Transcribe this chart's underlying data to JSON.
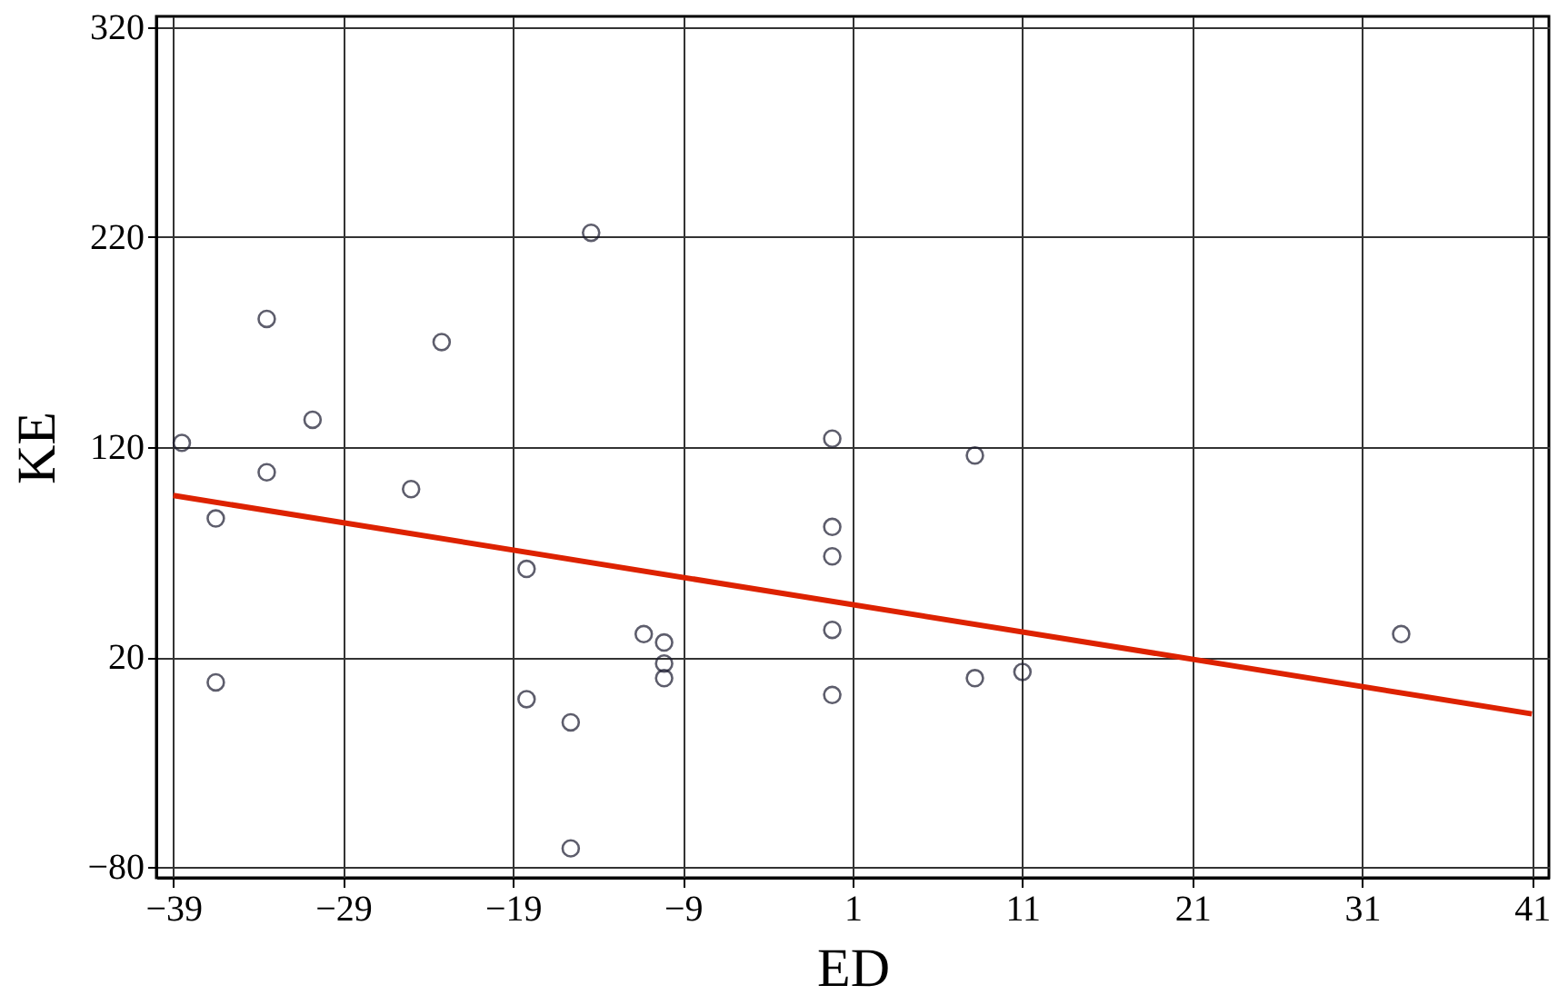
{
  "chart_data": {
    "type": "scatter",
    "xlabel": "ED",
    "ylabel": "KE",
    "xlim": [
      -40,
      42
    ],
    "ylim": [
      -85,
      325
    ],
    "xticks": [
      -39,
      -29,
      -19,
      -9,
      1,
      11,
      21,
      31,
      41
    ],
    "yticks": [
      -80,
      20,
      120,
      220,
      320
    ],
    "grid": true,
    "marker": "circle",
    "series": [
      {
        "color": "#1a1a2e",
        "x": [
          -38.5,
          -33.5,
          -23.2,
          -30.8,
          -33.5,
          -25.0,
          -36.5,
          -18.2,
          -36.5,
          -18.2,
          -15.6,
          -15.6,
          -14.4,
          -11.3,
          -10.1,
          -10.1,
          -10.1,
          -0.2,
          -0.2,
          -0.2,
          -0.2,
          -0.2,
          8.2,
          8.2,
          11,
          33.3
        ],
        "values": [
          122,
          181,
          170,
          133,
          108,
          100,
          86,
          62,
          8,
          0,
          -11,
          -71,
          222,
          31,
          27,
          17,
          10,
          124,
          82,
          68,
          33,
          2,
          116,
          10,
          13,
          31
        ]
      },
      {
        "type": "line",
        "color": "#dd2200",
        "line_style": "solid",
        "marker": "none",
        "x": [
          -39,
          41
        ],
        "values": [
          97,
          -7
        ]
      }
    ]
  }
}
